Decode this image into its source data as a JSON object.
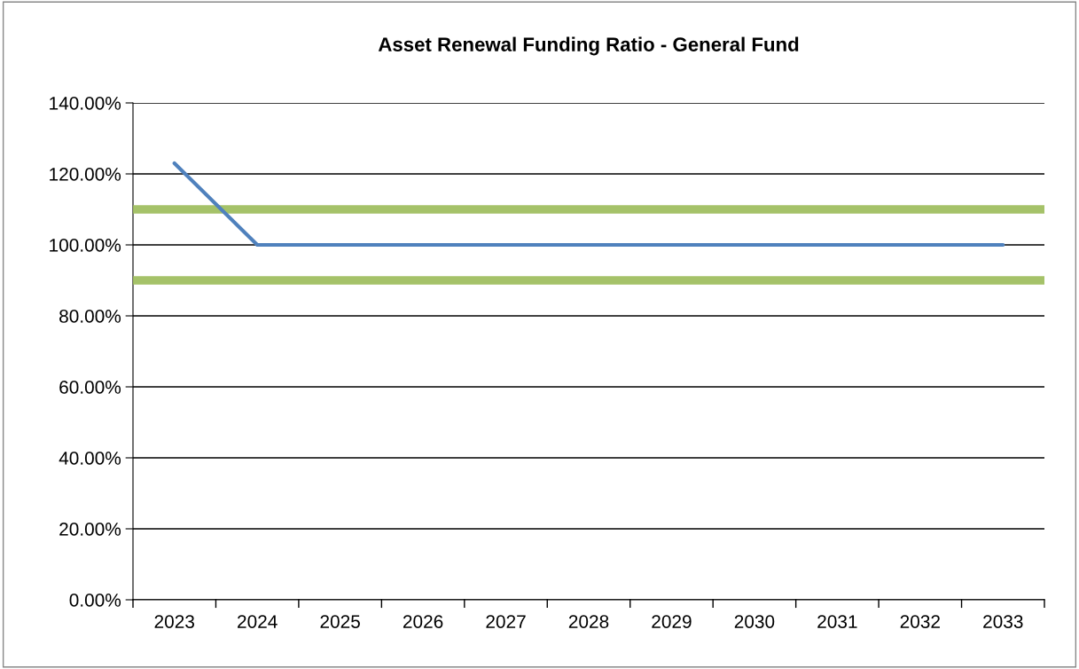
{
  "chart_data": {
    "type": "line",
    "title": "Asset Renewal Funding Ratio - General Fund",
    "categories": [
      "2023",
      "2024",
      "2025",
      "2026",
      "2027",
      "2028",
      "2029",
      "2030",
      "2031",
      "2032",
      "2033"
    ],
    "series": [
      {
        "color": "#4f81bd",
        "values": [
          123,
          100,
          100,
          100,
          100,
          100,
          100,
          100,
          100,
          100,
          100
        ]
      }
    ],
    "ylim": [
      0,
      140
    ],
    "yticks": [
      {
        "value": 0,
        "label": "0.00%"
      },
      {
        "value": 20,
        "label": "20.00%"
      },
      {
        "value": 40,
        "label": "40.00%"
      },
      {
        "value": 60,
        "label": "60.00%"
      },
      {
        "value": 80,
        "label": "80.00%"
      },
      {
        "value": 100,
        "label": "100.00%"
      },
      {
        "value": 120,
        "label": "120.00%"
      },
      {
        "value": 140,
        "label": "140.00%"
      }
    ],
    "ref_lines": [
      {
        "axis": "y",
        "value": 110,
        "color": "#9bbb59"
      },
      {
        "axis": "y",
        "value": 90,
        "color": "#9bbb59"
      }
    ],
    "grid": "y",
    "legend": false,
    "marker": "none",
    "line_style": "solid"
  }
}
